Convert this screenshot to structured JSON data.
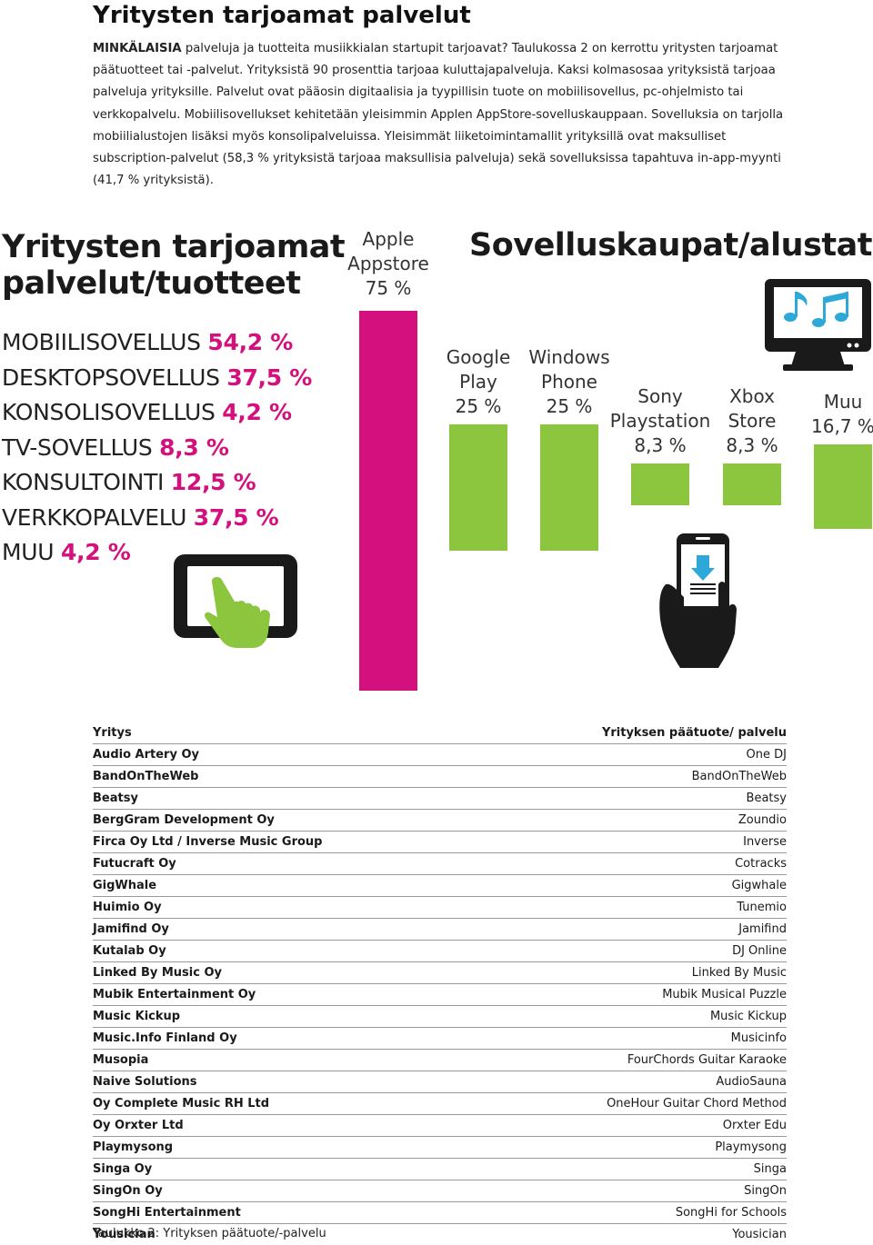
{
  "header": {
    "title": "Yritysten tarjoamat palvelut",
    "intro_lead": "MINKÄLAISIA",
    "intro_rest": " palveluja ja tuotteita musiikkialan startupit tarjoavat? Taulukossa 2 on kerrottu yritysten tarjoamat päätuotteet tai -palvelut. Yrityksistä 90 prosenttia tarjoaa kuluttajapalveluja. Kaksi kolmasosaa yrityksistä tarjoaa palveluja yrityksille. Palvelut ovat pääosin digitaalisia ja tyypillisin tuote on mobiilisovellus, pc-ohjelmisto tai verkkopalvelu. Mobiilisovellukset kehitetään yleisimmin Applen AppStore-sovelluskauppaan. Sovelluksia on tarjolla mobiilialustojen lisäksi myös konsolipalveluissa. Yleisimmät liiketoimintamallit yrityksillä ovat maksulliset subscription-palvelut (58,3 % yrityksistä tarjoaa maksullisia palveluja) sekä sovelluksissa tapahtuva in-app-myynti (41,7 % yrityksistä)."
  },
  "infographic": {
    "left_heading_line1": "Yritysten tarjoamat",
    "left_heading_line2": "palvelut/tuotteet",
    "offerings": [
      {
        "label": "MOBIILISOVELLUS",
        "pct": "54,2 %"
      },
      {
        "label": "DESKTOPSOVELLUS",
        "pct": "37,5 %"
      },
      {
        "label": "KONSOLISOVELLUS",
        "pct": "4,2 %"
      },
      {
        "label": "TV-SOVELLUS",
        "pct": "8,3 %"
      },
      {
        "label": "KONSULTOINTI",
        "pct": "12,5 %"
      },
      {
        "label": "VERKKOPALVELU",
        "pct": "37,5 %"
      },
      {
        "label": "MUU",
        "pct": "4,2 %"
      }
    ],
    "right_heading": "Sovelluskaupat/alustat",
    "icons": [
      "tablet-touch-icon",
      "tv-music-icon",
      "phone-download-icon"
    ]
  },
  "chart_data": {
    "type": "bar",
    "categories": [
      "Apple Appstore",
      "Google Play",
      "Windows Phone",
      "Sony Playstation",
      "Xbox Store",
      "Muu"
    ],
    "label_lines": [
      [
        "Apple",
        "Appstore",
        "75 %"
      ],
      [
        "Google",
        "Play",
        "25 %"
      ],
      [
        "Windows",
        "Phone",
        "25 %"
      ],
      [
        "Sony",
        "Playstation",
        "8,3 %"
      ],
      [
        "Xbox",
        "Store",
        "8,3 %"
      ],
      [
        "Muu",
        "16,7 %"
      ]
    ],
    "values": [
      75,
      25,
      25,
      8.3,
      8.3,
      16.7
    ],
    "colors": [
      "#d4107e",
      "#8cc63f",
      "#8cc63f",
      "#8cc63f",
      "#8cc63f",
      "#8cc63f"
    ],
    "title": "Sovelluskaupat/alustat",
    "xlabel": "",
    "ylabel": "",
    "ylim": [
      0,
      75
    ]
  },
  "table": {
    "header": {
      "company": "Yritys",
      "product": "Yrityksen päätuote/ palvelu"
    },
    "rows": [
      {
        "company": "Audio Artery Oy",
        "product": "One DJ"
      },
      {
        "company": "BandOnTheWeb",
        "product": "BandOnTheWeb"
      },
      {
        "company": "Beatsy",
        "product": "Beatsy"
      },
      {
        "company": "BergGram Development Oy",
        "product": "Zoundio"
      },
      {
        "company": "Firca Oy Ltd / Inverse Music Group",
        "product": "Inverse"
      },
      {
        "company": "Futucraft Oy",
        "product": "Cotracks"
      },
      {
        "company": "GigWhale",
        "product": "Gigwhale"
      },
      {
        "company": "Huimio Oy",
        "product": "Tunemio"
      },
      {
        "company": "Jamifind Oy",
        "product": "Jamifind"
      },
      {
        "company": "Kutalab Oy",
        "product": "DJ Online"
      },
      {
        "company": "Linked By Music Oy",
        "product": "Linked By Music"
      },
      {
        "company": "Mubik Entertainment Oy",
        "product": "Mubik Musical Puzzle"
      },
      {
        "company": "Music Kickup",
        "product": "Music Kickup"
      },
      {
        "company": "Music.Info Finland Oy",
        "product": "Musicinfo"
      },
      {
        "company": "Musopia",
        "product": "FourChords Guitar Karaoke"
      },
      {
        "company": "Naive Solutions",
        "product": "AudioSauna"
      },
      {
        "company": "Oy Complete Music RH Ltd",
        "product": "OneHour Guitar Chord Method"
      },
      {
        "company": "Oy Orxter Ltd",
        "product": "Orxter Edu"
      },
      {
        "company": "Playmysong",
        "product": "Playmysong"
      },
      {
        "company": "Singa Oy",
        "product": "Singa"
      },
      {
        "company": "SingOn Oy",
        "product": "SingOn"
      },
      {
        "company": "SongHi Entertainment",
        "product": "SongHi for Schools"
      },
      {
        "company": "Yousician",
        "product": "Yousician"
      }
    ],
    "caption": "Taulukko 2: Yrityksen päätuote/-palvelu"
  }
}
